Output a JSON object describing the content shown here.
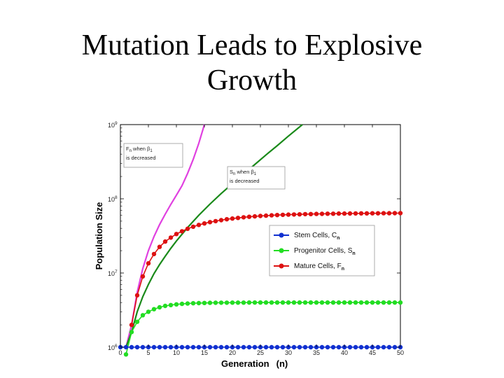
{
  "slide": {
    "title_line1": "Mutation Leads to Explosive",
    "title_line2": "Growth"
  },
  "chart_data": {
    "type": "line",
    "xlabel": "Generation",
    "xlabel_suffix": "(n)",
    "ylabel": "Population Size",
    "xlim": [
      0,
      50
    ],
    "ylim": [
      1000000,
      1000000000
    ],
    "yscale": "log",
    "x_ticks": [
      0,
      5,
      10,
      15,
      20,
      25,
      30,
      35,
      40,
      45,
      50
    ],
    "y_ticks": [
      {
        "base": "10",
        "exp": "6",
        "value": 1000000
      },
      {
        "base": "10",
        "exp": "7",
        "value": 10000000
      },
      {
        "base": "10",
        "exp": "8",
        "value": 100000000
      },
      {
        "base": "10",
        "exp": "9",
        "value": 1000000000
      }
    ],
    "legend_position": "center-right",
    "legend": [
      {
        "label": "Stem Cells, C",
        "sub": "n",
        "color": "#1030d0"
      },
      {
        "label": "Progenitor Cells, S",
        "sub": "n",
        "color": "#22dd22"
      },
      {
        "label": "Mature Cells, F",
        "sub": "n",
        "color": "#dd1111"
      }
    ],
    "series": [
      {
        "name": "Stem Cells, C",
        "color": "#1030d0",
        "marker": true,
        "x": [
          0,
          1,
          2,
          3,
          4,
          5,
          6,
          7,
          8,
          9,
          10,
          11,
          12,
          13,
          14,
          15,
          16,
          17,
          18,
          19,
          20,
          21,
          22,
          23,
          24,
          25,
          26,
          27,
          28,
          29,
          30,
          31,
          32,
          33,
          34,
          35,
          36,
          37,
          38,
          39,
          40,
          41,
          42,
          43,
          44,
          45,
          46,
          47,
          48,
          49,
          50
        ],
        "y": [
          1000000,
          1000000,
          1000000,
          1000000,
          1000000,
          1000000,
          1000000,
          1000000,
          1000000,
          1000000,
          1000000,
          1000000,
          1000000,
          1000000,
          1000000,
          1000000,
          1000000,
          1000000,
          1000000,
          1000000,
          1000000,
          1000000,
          1000000,
          1000000,
          1000000,
          1000000,
          1000000,
          1000000,
          1000000,
          1000000,
          1000000,
          1000000,
          1000000,
          1000000,
          1000000,
          1000000,
          1000000,
          1000000,
          1000000,
          1000000,
          1000000,
          1000000,
          1000000,
          1000000,
          1000000,
          1000000,
          1000000,
          1000000,
          1000000,
          1000000,
          1000000
        ]
      },
      {
        "name": "Progenitor Cells, S",
        "color": "#22dd22",
        "marker": true,
        "x": [
          1,
          2,
          3,
          4,
          5,
          6,
          7,
          8,
          9,
          10,
          11,
          12,
          13,
          14,
          15,
          16,
          17,
          18,
          19,
          20,
          21,
          22,
          23,
          24,
          25,
          26,
          27,
          28,
          29,
          30,
          31,
          32,
          33,
          34,
          35,
          36,
          37,
          38,
          39,
          40,
          41,
          42,
          43,
          44,
          45,
          46,
          47,
          48,
          49,
          50
        ],
        "y": [
          800000,
          1600000,
          2200000,
          2700000,
          3000000,
          3250000,
          3450000,
          3600000,
          3700000,
          3780000,
          3840000,
          3880000,
          3910000,
          3930000,
          3950000,
          3960000,
          3970000,
          3980000,
          3985000,
          3990000,
          3992000,
          3994000,
          3996000,
          3997000,
          3998000,
          3999000,
          4000000,
          4000000,
          4000000,
          4000000,
          4000000,
          4000000,
          4000000,
          4000000,
          4000000,
          4000000,
          4000000,
          4000000,
          4000000,
          4000000,
          4000000,
          4000000,
          4000000,
          4000000,
          4000000,
          4000000,
          4000000,
          4000000,
          4000000,
          4000000
        ]
      },
      {
        "name": "Mature Cells, F",
        "color": "#dd1111",
        "marker": true,
        "x": [
          2,
          3,
          4,
          5,
          6,
          7,
          8,
          9,
          10,
          11,
          12,
          13,
          14,
          15,
          16,
          17,
          18,
          19,
          20,
          21,
          22,
          23,
          24,
          25,
          26,
          27,
          28,
          29,
          30,
          31,
          32,
          33,
          34,
          35,
          36,
          37,
          38,
          39,
          40,
          41,
          42,
          43,
          44,
          45,
          46,
          47,
          48,
          49,
          50
        ],
        "y": [
          2000000,
          5000000,
          9000000,
          13500000,
          18000000,
          22500000,
          26500000,
          30000000,
          33500000,
          36500000,
          39500000,
          42000000,
          44500000,
          46500000,
          48500000,
          50000000,
          51500000,
          53000000,
          54200000,
          55300000,
          56300000,
          57200000,
          58000000,
          58700000,
          59300000,
          59900000,
          60400000,
          60800000,
          61200000,
          61500000,
          61800000,
          62100000,
          62300000,
          62500000,
          62700000,
          62900000,
          63000000,
          63200000,
          63300000,
          63400000,
          63500000,
          63600000,
          63700000,
          63800000,
          63800000,
          63900000,
          63900000,
          64000000,
          64000000
        ]
      },
      {
        "name": "annotation-F-curve",
        "color": "#e040e0",
        "marker": false,
        "x": [
          1,
          2,
          3,
          4,
          5,
          6,
          7,
          8,
          9,
          10,
          11,
          12,
          13,
          14,
          15
        ],
        "y": [
          1000000,
          2000000,
          5500000,
          11500000,
          20000000,
          31000000,
          45000000,
          62000000,
          84000000,
          112000000,
          150000000,
          220000000,
          340000000,
          560000000,
          1000000000
        ]
      },
      {
        "name": "annotation-S-curve",
        "color": "#1a8a1a",
        "marker": false,
        "x": [
          1,
          2,
          3,
          4,
          5,
          6,
          7,
          8,
          9,
          10,
          12,
          14,
          16,
          18,
          20,
          22,
          24,
          26,
          28,
          30,
          32.5
        ],
        "y": [
          1000000,
          1600000,
          3000000,
          4800000,
          7000000,
          9800000,
          13000000,
          16800000,
          21500000,
          27000000,
          41000000,
          60000000,
          85000000,
          118000000,
          160000000,
          215000000,
          290000000,
          390000000,
          520000000,
          700000000,
          1000000000
        ]
      }
    ],
    "annotations": [
      {
        "letter": "F",
        "sub": "n",
        "line1_rest": " when ",
        "beta": "β",
        "beta_sub": "1",
        "line2": "is decreased"
      },
      {
        "letter": "S",
        "sub": "n",
        "line1_rest": " when ",
        "beta": "β",
        "beta_sub": "1",
        "line2": "is decreased"
      }
    ]
  }
}
